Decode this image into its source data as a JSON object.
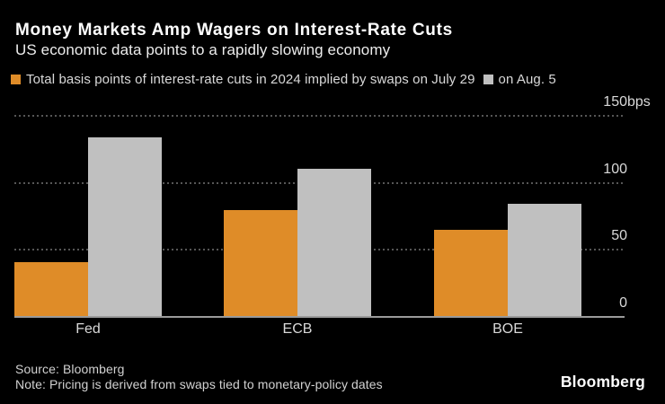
{
  "header": {
    "title": "Money Markets Amp Wagers on Interest-Rate Cuts",
    "subtitle": "US economic data points to a rapidly slowing economy"
  },
  "legend": {
    "items": [
      {
        "label": "Total basis points of interest-rate cuts in 2024 implied by swaps on July 29",
        "color": "#DF8C28"
      },
      {
        "label": "on Aug. 5",
        "color": "#C0C0C0"
      }
    ]
  },
  "chart_data": {
    "type": "bar",
    "title": "Money Markets Amp Wagers on Interest-Rate Cuts",
    "subtitle": "US economic data points to a rapidly slowing economy",
    "categories": [
      "Fed",
      "ECB",
      "BOE"
    ],
    "series": [
      {
        "name": "Total basis points of interest-rate cuts in 2024 implied by swaps on July 29",
        "color": "#DF8C28",
        "values": [
          40,
          79,
          64
        ]
      },
      {
        "name": "on Aug. 5",
        "color": "#C0C0C0",
        "values": [
          133,
          110,
          84
        ]
      }
    ],
    "unit": "bps",
    "ylim": [
      0,
      150
    ],
    "yticks": [
      {
        "value": 150,
        "label": "150",
        "unit": "bps"
      },
      {
        "value": 100,
        "label": "100"
      },
      {
        "value": 50,
        "label": "50"
      },
      {
        "value": 0,
        "label": "0"
      }
    ],
    "grid": "dotted-horizontal",
    "legend_position": "top-left",
    "ytick_side": "right"
  },
  "footer": {
    "source": "Source: Bloomberg",
    "note": "Note: Pricing is derived from swaps tied to monetary-policy dates",
    "brand": "Bloomberg"
  },
  "colors": {
    "background": "#000000",
    "bar_july29": "#DF8C28",
    "bar_aug5": "#C0C0C0",
    "gridline": "#565656",
    "axis_line": "#9A9A9A",
    "text_primary": "#FFFFFF",
    "text_secondary": "#D9D9D9"
  }
}
